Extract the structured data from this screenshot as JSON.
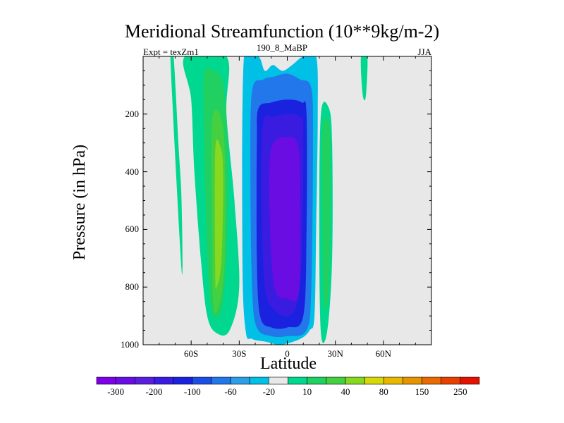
{
  "chart_data": {
    "type": "heatmap",
    "title": "Meridional Streamfunction (10**9kg/m-2)",
    "subtitle_left": "Expt = texZm1",
    "subtitle_center": "190_8_MaBP",
    "subtitle_right": "JJA",
    "xlabel": "Latitude",
    "ylabel": "Pressure (in hPa)",
    "xlim": [
      -90,
      90
    ],
    "ylim": [
      1000,
      0
    ],
    "x_ticks": [
      {
        "value": -60,
        "label": "60S"
      },
      {
        "value": -30,
        "label": "30S"
      },
      {
        "value": 0,
        "label": "0"
      },
      {
        "value": 30,
        "label": "30N"
      },
      {
        "value": 60,
        "label": "60N"
      }
    ],
    "y_ticks": [
      {
        "value": 200,
        "label": "200"
      },
      {
        "value": 400,
        "label": "400"
      },
      {
        "value": 600,
        "label": "600"
      },
      {
        "value": 800,
        "label": "800"
      },
      {
        "value": 1000,
        "label": "1000"
      }
    ],
    "colorbar": {
      "colors": [
        "#7f00e6",
        "#6a0de3",
        "#5a1ee0",
        "#3a1ce0",
        "#1a22e0",
        "#1c4ee6",
        "#2277ea",
        "#2a9ee8",
        "#00c0e6",
        "#e8e8e8",
        "#00d890",
        "#20d060",
        "#44d040",
        "#88d820",
        "#d8d808",
        "#e8b800",
        "#e89400",
        "#e86a00",
        "#e84000",
        "#e41000"
      ],
      "labels": [
        {
          "index": 1,
          "text": "-300"
        },
        {
          "index": 3,
          "text": "-200"
        },
        {
          "index": 5,
          "text": "-100"
        },
        {
          "index": 7,
          "text": "-60"
        },
        {
          "index": 9,
          "text": "-20"
        },
        {
          "index": 11,
          "text": "10"
        },
        {
          "index": 13,
          "text": "40"
        },
        {
          "index": 15,
          "text": "80"
        },
        {
          "index": 17,
          "text": "150"
        },
        {
          "index": 19,
          "text": "250"
        }
      ]
    },
    "background_color": "#e8e8e8",
    "contour_cells": [
      {
        "name": "southern-cell-outer-10",
        "color": "#00d890",
        "lat": [
          -64,
          -38,
          -38,
          -33,
          -30,
          -36,
          -44,
          -50,
          -54,
          -58,
          -60
        ],
        "p": [
          0,
          0,
          200,
          500,
          800,
          950,
          960,
          900,
          700,
          400,
          150
        ]
      },
      {
        "name": "southern-cell-20",
        "color": "#20d060",
        "lat": [
          -52,
          -46,
          -40,
          -37,
          -38,
          -41,
          -46,
          -49,
          -51,
          -52
        ],
        "p": [
          60,
          50,
          100,
          350,
          700,
          880,
          900,
          800,
          500,
          250
        ]
      },
      {
        "name": "southern-cell-40",
        "color": "#44d040",
        "lat": [
          -47,
          -42,
          -39,
          -39,
          -42,
          -46,
          -47
        ],
        "p": [
          230,
          200,
          330,
          700,
          850,
          870,
          600
        ]
      },
      {
        "name": "southern-cell-80",
        "color": "#88d820",
        "lat": [
          -45,
          -42,
          -40,
          -41,
          -44,
          -45
        ],
        "p": [
          330,
          310,
          400,
          700,
          800,
          750
        ]
      },
      {
        "name": "hadley-cell--20",
        "color": "#00c0e6",
        "lat": [
          -27,
          -18,
          -14,
          -9,
          -3,
          3,
          10,
          18,
          19,
          18,
          17,
          14,
          8,
          -4,
          -13,
          -22,
          -26,
          -28
        ],
        "p": [
          0,
          0,
          50,
          30,
          50,
          30,
          0,
          0,
          200,
          600,
          900,
          950,
          980,
          1000,
          990,
          980,
          950,
          700
        ]
      },
      {
        "name": "hadley-cell--60",
        "color": "#2277ea",
        "lat": [
          -22,
          -15,
          -8,
          0,
          8,
          15,
          16,
          15,
          12,
          0,
          -10,
          -19,
          -22,
          -23
        ],
        "p": [
          120,
          80,
          70,
          60,
          80,
          110,
          300,
          800,
          950,
          970,
          970,
          940,
          800,
          400
        ]
      },
      {
        "name": "hadley-cell--100",
        "color": "#1a22e0",
        "lat": [
          -18,
          -10,
          0,
          9,
          12,
          12,
          10,
          0,
          -10,
          -17,
          -19,
          -19
        ],
        "p": [
          180,
          160,
          150,
          160,
          200,
          600,
          900,
          940,
          940,
          900,
          700,
          300
        ]
      },
      {
        "name": "hadley-cell--200",
        "color": "#3a1ce0",
        "lat": [
          -15,
          -8,
          0,
          8,
          10,
          9,
          6,
          0,
          -8,
          -14,
          -16
        ],
        "p": [
          230,
          210,
          200,
          210,
          270,
          700,
          860,
          900,
          880,
          800,
          500
        ]
      },
      {
        "name": "hadley-cell--300",
        "color": "#6a0de3",
        "lat": [
          -10,
          0,
          7,
          8,
          7,
          0,
          -8,
          -11
        ],
        "p": [
          320,
          280,
          320,
          550,
          820,
          840,
          800,
          550
        ]
      },
      {
        "name": "northern-cell-10",
        "color": "#00d890",
        "lat": [
          21,
          26,
          28,
          28,
          25,
          21,
          20
        ],
        "p": [
          200,
          180,
          300,
          700,
          950,
          960,
          600
        ]
      },
      {
        "name": "northern-cell-20",
        "color": "#20d060",
        "lat": [
          22,
          26,
          27,
          26,
          23,
          22
        ],
        "p": [
          260,
          230,
          400,
          800,
          860,
          600
        ]
      },
      {
        "name": "upper-streak-10",
        "color": "#00d890",
        "lat": [
          46,
          50,
          49,
          47
        ],
        "p": [
          0,
          0,
          140,
          130
        ]
      },
      {
        "name": "southern-streak-10",
        "color": "#00d890",
        "lat": [
          -73,
          -71,
          -68,
          -66,
          -66
        ],
        "p": [
          0,
          0,
          300,
          500,
          740
        ]
      }
    ]
  }
}
